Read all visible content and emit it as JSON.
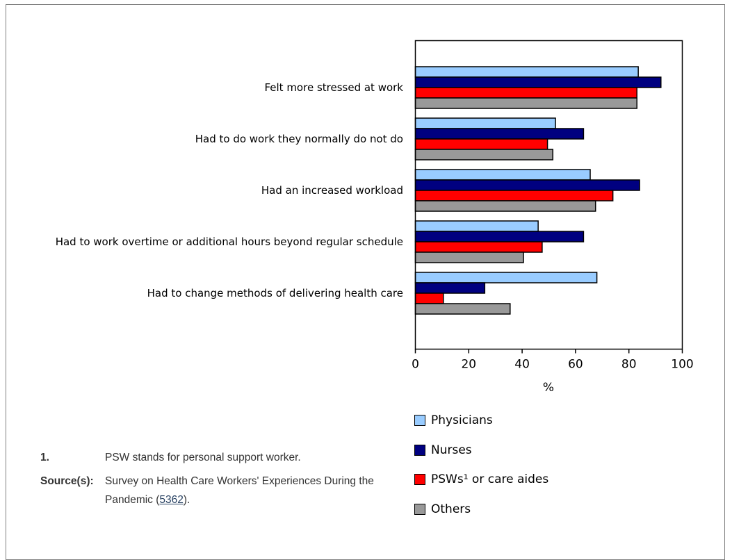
{
  "chart_data": {
    "type": "bar",
    "orientation": "horizontal",
    "categories": [
      "Felt more stressed at work",
      "Had to do work they normally do not do",
      "Had an increased workload",
      "Had to work overtime or additional hours beyond regular schedule",
      "Had to change methods of delivering health care"
    ],
    "series": [
      {
        "name": "Physicians",
        "color": "#99ccff",
        "values": [
          83.5,
          52.5,
          65.5,
          46,
          68
        ]
      },
      {
        "name": "Nurses",
        "color": "#000080",
        "values": [
          92,
          63,
          84,
          63,
          26
        ]
      },
      {
        "name": "PSWs¹ or care aides",
        "color": "#ff0000",
        "values": [
          83,
          49.5,
          74,
          47.5,
          10.5
        ]
      },
      {
        "name": "Others",
        "color": "#999999",
        "values": [
          83,
          51.5,
          67.5,
          40.5,
          35.5
        ]
      }
    ],
    "xlabel": "%",
    "xlim": [
      0,
      100
    ],
    "xticks": [
      0,
      20,
      40,
      60,
      80,
      100
    ],
    "legend_position": "bottom"
  },
  "notes": {
    "footnote_key": "1.",
    "footnote_text": "PSW stands for personal support worker.",
    "source_key": "Source(s):",
    "source_text": "Survey on Health Care Workers' Experiences During the Pandemic (",
    "source_link": "5362",
    "source_end": ")."
  }
}
